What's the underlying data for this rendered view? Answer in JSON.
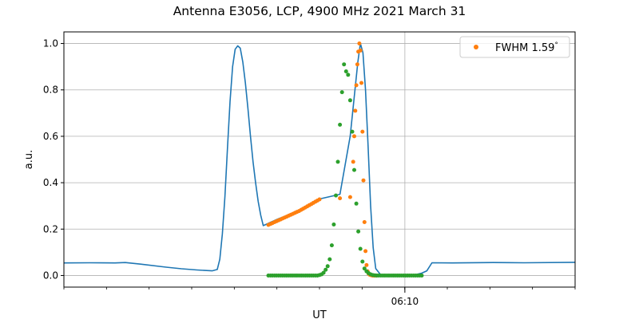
{
  "chart_data": {
    "type": "line",
    "title": "Antenna E3056, LCP, 4900 MHz 2021 March 31",
    "xlabel": "UT",
    "ylabel": "a.u.",
    "xlim": [
      0,
      1000
    ],
    "ylim": [
      -0.05,
      1.05
    ],
    "xticks": [
      {
        "x": 667,
        "label": "06:10"
      }
    ],
    "yticks": [
      0.0,
      0.2,
      0.4,
      0.6,
      0.8,
      1.0
    ],
    "grid": true,
    "legend_position": "top-right",
    "series": [
      {
        "name": "",
        "kind": "line",
        "color": "#1f77b4",
        "x": [
          0,
          50,
          100,
          120,
          150,
          200,
          230,
          260,
          290,
          300,
          305,
          310,
          315,
          320,
          325,
          330,
          335,
          340,
          345,
          350,
          355,
          360,
          365,
          370,
          375,
          380,
          385,
          390,
          395,
          400,
          405,
          410,
          415,
          420,
          450,
          480,
          500,
          540,
          560,
          575,
          580,
          585,
          590,
          595,
          600,
          605,
          610,
          620,
          640,
          660,
          667,
          690,
          700,
          710,
          720,
          760,
          840,
          900,
          1000
        ],
        "y": [
          0.054,
          0.055,
          0.054,
          0.056,
          0.049,
          0.036,
          0.029,
          0.024,
          0.02,
          0.026,
          0.07,
          0.18,
          0.34,
          0.55,
          0.75,
          0.9,
          0.975,
          0.99,
          0.98,
          0.92,
          0.83,
          0.72,
          0.6,
          0.49,
          0.4,
          0.32,
          0.26,
          0.215,
          0.22,
          0.225,
          0.23,
          0.235,
          0.24,
          0.245,
          0.27,
          0.3,
          0.33,
          0.35,
          0.6,
          0.92,
          1.0,
          0.96,
          0.8,
          0.56,
          0.3,
          0.12,
          0.03,
          0.002,
          0.0,
          0.0,
          0.0,
          0.005,
          0.01,
          0.02,
          0.055,
          0.054,
          0.056,
          0.055,
          0.057
        ]
      },
      {
        "name": "FWHM 1.59$^\\circ$",
        "kind": "scatter",
        "color": "#ff7f0e",
        "x": [
          400,
          404,
          408,
          412,
          416,
          420,
          424,
          428,
          432,
          436,
          440,
          444,
          448,
          452,
          456,
          460,
          464,
          468,
          472,
          476,
          480,
          484,
          488,
          492,
          496,
          500,
          540,
          560,
          566,
          568,
          570,
          572,
          574,
          576,
          578,
          580,
          582,
          584,
          586,
          588,
          590,
          592,
          594,
          596,
          598,
          600,
          602,
          604,
          606,
          608,
          610,
          612
        ],
        "y": [
          0.218,
          0.222,
          0.226,
          0.23,
          0.234,
          0.238,
          0.242,
          0.246,
          0.25,
          0.254,
          0.258,
          0.262,
          0.266,
          0.27,
          0.274,
          0.278,
          0.283,
          0.288,
          0.293,
          0.298,
          0.303,
          0.308,
          0.313,
          0.318,
          0.323,
          0.328,
          0.333,
          0.338,
          0.49,
          0.6,
          0.71,
          0.82,
          0.91,
          0.965,
          1.0,
          0.97,
          0.83,
          0.62,
          0.41,
          0.23,
          0.105,
          0.045,
          0.018,
          0.008,
          0.004,
          0.002,
          0.001,
          0.0,
          0.0,
          0.0,
          0.0,
          0.0
        ]
      },
      {
        "name": "",
        "kind": "scatter",
        "color": "#2ca02c",
        "x": [
          400,
          404,
          408,
          412,
          416,
          420,
          424,
          428,
          432,
          436,
          440,
          444,
          448,
          452,
          456,
          460,
          464,
          468,
          472,
          476,
          480,
          484,
          488,
          492,
          496,
          500,
          504,
          508,
          512,
          516,
          520,
          524,
          528,
          532,
          536,
          540,
          544,
          548,
          552,
          556,
          560,
          564,
          568,
          572,
          576,
          580,
          584,
          588,
          592,
          596,
          600,
          604,
          608,
          612,
          616,
          620,
          624,
          628,
          632,
          636,
          640,
          644,
          648,
          652,
          656,
          660,
          664,
          668,
          672,
          676,
          680,
          684,
          688,
          692,
          696,
          700
        ],
        "y": [
          0.0,
          0.0,
          0.0,
          0.0,
          0.0,
          0.0,
          0.0,
          0.0,
          0.0,
          0.0,
          0.0,
          0.0,
          0.0,
          0.0,
          0.0,
          0.0,
          0.0,
          0.0,
          0.0,
          0.0,
          0.0,
          0.0,
          0.0,
          0.0,
          0.0,
          0.002,
          0.005,
          0.012,
          0.025,
          0.04,
          0.07,
          0.13,
          0.22,
          0.345,
          0.49,
          0.65,
          0.79,
          0.91,
          0.88,
          0.865,
          0.755,
          0.62,
          0.455,
          0.31,
          0.19,
          0.115,
          0.06,
          0.03,
          0.018,
          0.01,
          0.005,
          0.002,
          0.001,
          0.0,
          0.0,
          0.0,
          0.0,
          0.0,
          0.0,
          0.0,
          0.0,
          0.0,
          0.0,
          0.0,
          0.0,
          0.0,
          0.0,
          0.0,
          0.0,
          0.0,
          0.0,
          0.0,
          0.0,
          0.0,
          0.0,
          0.0
        ]
      }
    ]
  },
  "legend": {
    "label_main": "FWHM 1.59",
    "label_sup": "°",
    "marker_color": "#ff7f0e"
  },
  "colors": {
    "grid": "#b0b0b0",
    "axes": "#000000"
  }
}
